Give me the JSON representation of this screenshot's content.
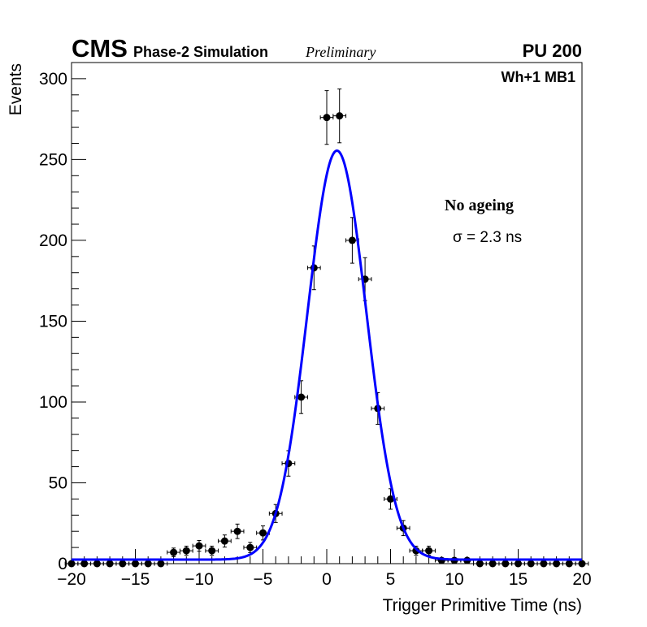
{
  "chart_data": {
    "type": "scatter",
    "header": {
      "experiment": "CMS",
      "subtitle": "Phase-2 Simulation",
      "status": "Preliminary",
      "pileup": "PU 200"
    },
    "region_label": "Wh+1 MB1",
    "xlabel": "Trigger Primitive Time (ns)",
    "ylabel": "Events",
    "xlim": [
      -20,
      20
    ],
    "ylim": [
      0,
      310
    ],
    "x_ticks": [
      -20,
      -15,
      -10,
      -5,
      0,
      5,
      10,
      15,
      20
    ],
    "x_tick_labels": [
      "−20",
      "−15",
      "−10",
      "−5",
      "0",
      "5",
      "10",
      "15",
      "20"
    ],
    "y_ticks": [
      0,
      50,
      100,
      150,
      200,
      250,
      300
    ],
    "y_tick_labels": [
      "0",
      "50",
      "100",
      "150",
      "200",
      "250",
      "300"
    ],
    "annotation_title": "No ageing",
    "annotation_sigma": "σ = 2.3 ns",
    "series": [
      {
        "name": "Simulation",
        "marker": "circle",
        "color": "#000000",
        "x": [
          -20,
          -19,
          -18,
          -17,
          -16,
          -15,
          -14,
          -13,
          -12,
          -11,
          -10,
          -9,
          -8,
          -7,
          -6,
          -5,
          -4,
          -3,
          -2,
          -1,
          0,
          1,
          2,
          3,
          4,
          5,
          6,
          7,
          8,
          9,
          10,
          11,
          12,
          13,
          14,
          15,
          16,
          17,
          18,
          19,
          20
        ],
        "y": [
          0,
          0,
          0,
          0,
          0,
          0,
          0,
          0,
          7,
          8,
          11,
          8,
          14,
          20,
          10,
          19,
          31,
          62,
          103,
          183,
          276,
          277,
          200,
          176,
          96,
          40,
          22,
          8,
          8,
          2,
          2,
          2,
          0,
          0,
          0,
          0,
          0,
          0,
          0,
          0,
          0
        ],
        "x_err": 0.5
      }
    ],
    "fit": {
      "name": "Gaussian fit",
      "color": "#0000ff",
      "amplitude": 253,
      "mean": 0.8,
      "sigma": 2.3,
      "baseline": 2.5
    }
  }
}
